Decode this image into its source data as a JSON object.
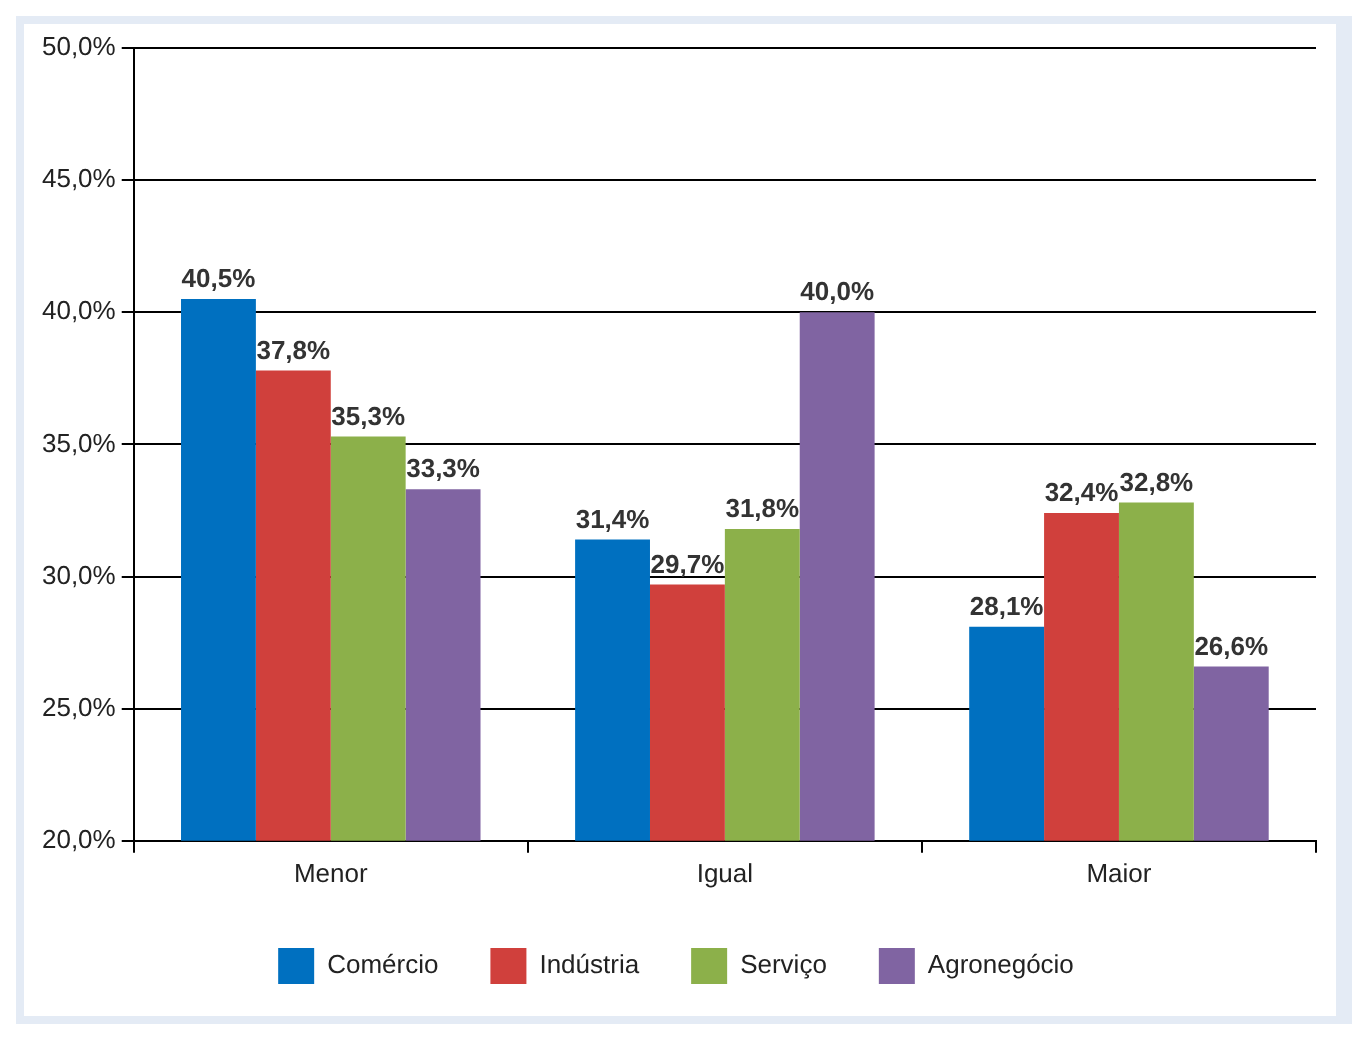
{
  "chart_data": {
    "type": "bar",
    "categories": [
      "Menor",
      "Igual",
      "Maior"
    ],
    "series": [
      {
        "name": "Comércio",
        "color": "#0070c0",
        "values": [
          40.5,
          31.4,
          28.1
        ],
        "value_labels": [
          "40,5%",
          "31,4%",
          "28,1%"
        ]
      },
      {
        "name": "Indústria",
        "color": "#d0403c",
        "values": [
          37.8,
          29.7,
          32.4
        ],
        "value_labels": [
          "37,8%",
          "29,7%",
          "32,4%"
        ]
      },
      {
        "name": "Serviço",
        "color": "#8cb04a",
        "values": [
          35.3,
          31.8,
          32.8
        ],
        "value_labels": [
          "35,3%",
          "31,8%",
          "32,8%"
        ]
      },
      {
        "name": "Agronegócio",
        "color": "#8064a2",
        "values": [
          33.3,
          40.0,
          26.6
        ],
        "value_labels": [
          "33,3%",
          "40,0%",
          "26,6%"
        ]
      }
    ],
    "ylim": [
      20,
      50
    ],
    "yticks": [
      {
        "value": 20,
        "label": "20,0%"
      },
      {
        "value": 25,
        "label": "25,0%"
      },
      {
        "value": 30,
        "label": "30,0%"
      },
      {
        "value": 35,
        "label": "35,0%"
      },
      {
        "value": 40,
        "label": "40,0%"
      },
      {
        "value": 45,
        "label": "45,0%"
      },
      {
        "value": 50,
        "label": "50,0%"
      }
    ],
    "grid": "y",
    "legend": "bottom"
  }
}
